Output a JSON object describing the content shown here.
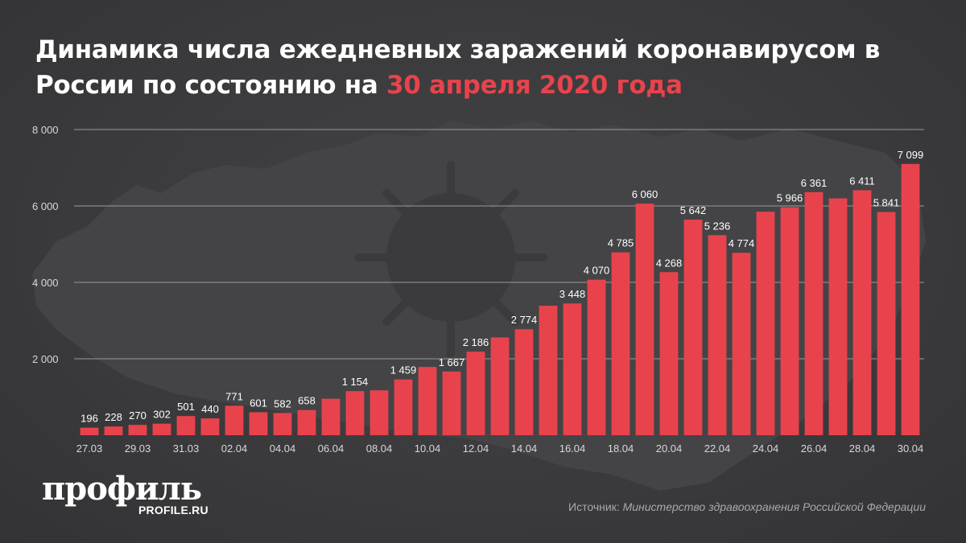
{
  "title": {
    "main": "Динамика числа ежедневных заражений коронавирусом в России по состоянию на ",
    "highlight": "30 апреля 2020 года"
  },
  "colors": {
    "background": "#3a3a3c",
    "bar": "#e8434c",
    "highlight": "#e8434c",
    "text": "#ffffff",
    "muted": "#a9a9ab"
  },
  "logo": {
    "word": "профиль",
    "url": "PROFILE.RU"
  },
  "source": {
    "label": "Источник:",
    "text": "Министерство здравоохранения Российской Федерации"
  },
  "chart_data": {
    "type": "bar",
    "title": "Динамика числа ежедневных заражений коронавирусом в России по состоянию на 30 апреля 2020 года",
    "xlabel": "",
    "ylabel": "",
    "ylim": [
      0,
      8000
    ],
    "yticks": [
      2000,
      4000,
      6000,
      8000
    ],
    "ytick_labels": [
      "2 000",
      "4 000",
      "6 000",
      "8 000"
    ],
    "grid": true,
    "categories": [
      "27.03",
      "28.03",
      "29.03",
      "30.03",
      "31.03",
      "01.04",
      "02.04",
      "03.04",
      "04.04",
      "05.04",
      "06.04",
      "07.04",
      "08.04",
      "09.04",
      "10.04",
      "11.04",
      "12.04",
      "13.04",
      "14.04",
      "15.04",
      "16.04",
      "17.04",
      "18.04",
      "19.04",
      "20.04",
      "21.04",
      "22.04",
      "23.04",
      "24.04",
      "25.04",
      "26.04",
      "27.04",
      "28.04",
      "29.04",
      "30.04"
    ],
    "xtick_labels": [
      "27.03",
      "",
      "29.03",
      "",
      "31.03",
      "",
      "02.04",
      "",
      "04.04",
      "",
      "06.04",
      "",
      "08.04",
      "",
      "10.04",
      "",
      "12.04",
      "",
      "14.04",
      "",
      "16.04",
      "",
      "18.04",
      "",
      "20.04",
      "",
      "22.04",
      "",
      "24.04",
      "",
      "26.04",
      "",
      "28.04",
      "",
      "30.04"
    ],
    "values": [
      196,
      228,
      270,
      302,
      501,
      440,
      771,
      601,
      582,
      658,
      954,
      1154,
      1175,
      1459,
      1786,
      1667,
      2186,
      2558,
      2774,
      3388,
      3448,
      4070,
      4785,
      6060,
      4268,
      5642,
      5236,
      4774,
      5849,
      5966,
      6361,
      6198,
      6411,
      5841,
      7099
    ],
    "value_labels": [
      "196",
      "228",
      "270",
      "302",
      "501",
      "440",
      "771",
      "601",
      "582",
      "658",
      "",
      "1 154",
      "",
      "1 459",
      "",
      "1 667",
      "2 186",
      "",
      "2 774",
      "",
      "3 448",
      "4 070",
      "4 785",
      "6 060",
      "4 268",
      "5 642",
      "5 236",
      "4 774",
      "",
      "5 966",
      "6 361",
      "",
      "6 411",
      "5 841",
      "7 099"
    ]
  }
}
